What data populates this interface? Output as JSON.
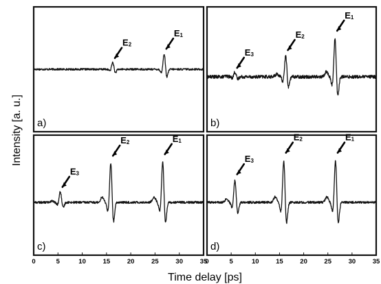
{
  "chart_data": {
    "type": "line",
    "x_axis": {
      "label": "Time delay  [ps]",
      "range": [
        0,
        35
      ],
      "ticks": [
        0,
        5,
        10,
        15,
        20,
        25,
        30,
        35
      ]
    },
    "y_axis": {
      "label": "Intensity [a. u.]",
      "range": [
        -1,
        1
      ]
    },
    "panels": [
      {
        "tag": "a)",
        "noise": 0.012,
        "pulses": [
          {
            "t": 16.3,
            "amp": 0.1,
            "w": 0.35,
            "label": "E",
            "sub": "2"
          },
          {
            "t": 26.9,
            "amp": 0.22,
            "w": 0.35,
            "label": "E",
            "sub": "1"
          }
        ]
      },
      {
        "tag": "b)",
        "noise": 0.022,
        "pulses": [
          {
            "t": 5.8,
            "amp": 0.07,
            "w": 0.35,
            "label": "E",
            "sub": "3"
          },
          {
            "t": 16.3,
            "amp": 0.3,
            "w": 0.36,
            "label": "E",
            "sub": "2"
          },
          {
            "t": 26.5,
            "amp": 0.55,
            "w": 0.36,
            "label": "E",
            "sub": "1"
          }
        ]
      },
      {
        "tag": "c)",
        "noise": 0.015,
        "pulses": [
          {
            "t": 5.5,
            "amp": 0.16,
            "w": 0.36,
            "label": "E",
            "sub": "3"
          },
          {
            "t": 15.9,
            "amp": 0.58,
            "w": 0.36,
            "label": "E",
            "sub": "2"
          },
          {
            "t": 26.6,
            "amp": 0.6,
            "w": 0.36,
            "label": "E",
            "sub": "1"
          }
        ]
      },
      {
        "tag": "d)",
        "noise": 0.015,
        "pulses": [
          {
            "t": 5.8,
            "amp": 0.33,
            "w": 0.36,
            "label": "E",
            "sub": "3"
          },
          {
            "t": 15.9,
            "amp": 0.62,
            "w": 0.36,
            "label": "E",
            "sub": "2"
          },
          {
            "t": 26.6,
            "amp": 0.62,
            "w": 0.36,
            "label": "E",
            "sub": "1"
          }
        ]
      }
    ],
    "grid": false,
    "legend": "none",
    "line_color": "#111111"
  }
}
